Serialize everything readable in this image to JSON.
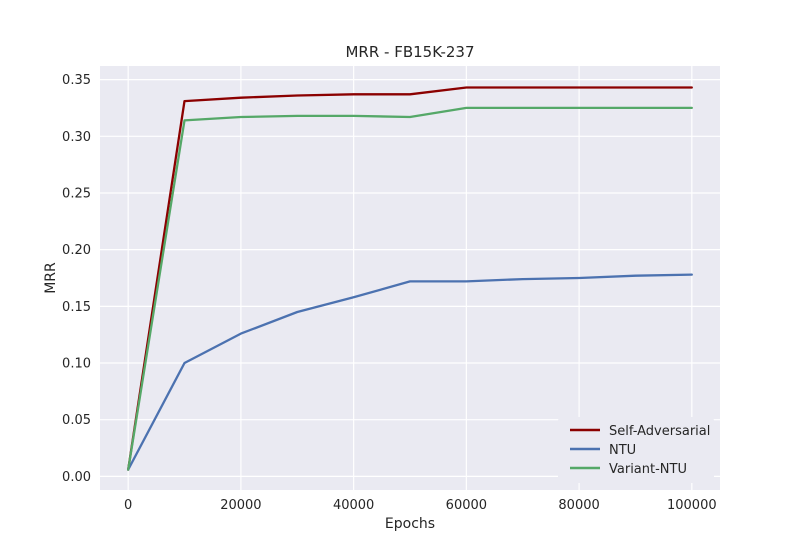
{
  "chart_data": {
    "type": "line",
    "title": "MRR - FB15K-237",
    "xlabel": "Epochs",
    "ylabel": "MRR",
    "xlim": [
      -5000,
      105000
    ],
    "ylim": [
      -0.012,
      0.362
    ],
    "x_ticks": [
      0,
      20000,
      40000,
      60000,
      80000,
      100000
    ],
    "y_ticks": [
      0.0,
      0.05,
      0.1,
      0.15,
      0.2,
      0.25,
      0.3,
      0.35
    ],
    "x_tick_labels": [
      "0",
      "20000",
      "40000",
      "60000",
      "80000",
      "100000"
    ],
    "y_tick_labels": [
      "0.00",
      "0.05",
      "0.10",
      "0.15",
      "0.20",
      "0.25",
      "0.30",
      "0.35"
    ],
    "grid": true,
    "legend_position": "lower-right",
    "x": [
      0,
      10000,
      20000,
      30000,
      40000,
      50000,
      60000,
      70000,
      80000,
      90000,
      100000
    ],
    "series": [
      {
        "name": "Self-Adversarial",
        "color": "#8b0000",
        "values": [
          0.006,
          0.331,
          0.334,
          0.336,
          0.337,
          0.337,
          0.343,
          0.343,
          0.343,
          0.343,
          0.343
        ]
      },
      {
        "name": "NTU",
        "color": "#4c72b0",
        "values": [
          0.006,
          0.1,
          0.126,
          0.145,
          0.158,
          0.172,
          0.172,
          0.174,
          0.175,
          0.177,
          0.178
        ]
      },
      {
        "name": "Variant-NTU",
        "color": "#55a868",
        "values": [
          0.006,
          0.314,
          0.317,
          0.318,
          0.318,
          0.317,
          0.325,
          0.325,
          0.325,
          0.325,
          0.325
        ]
      }
    ]
  }
}
